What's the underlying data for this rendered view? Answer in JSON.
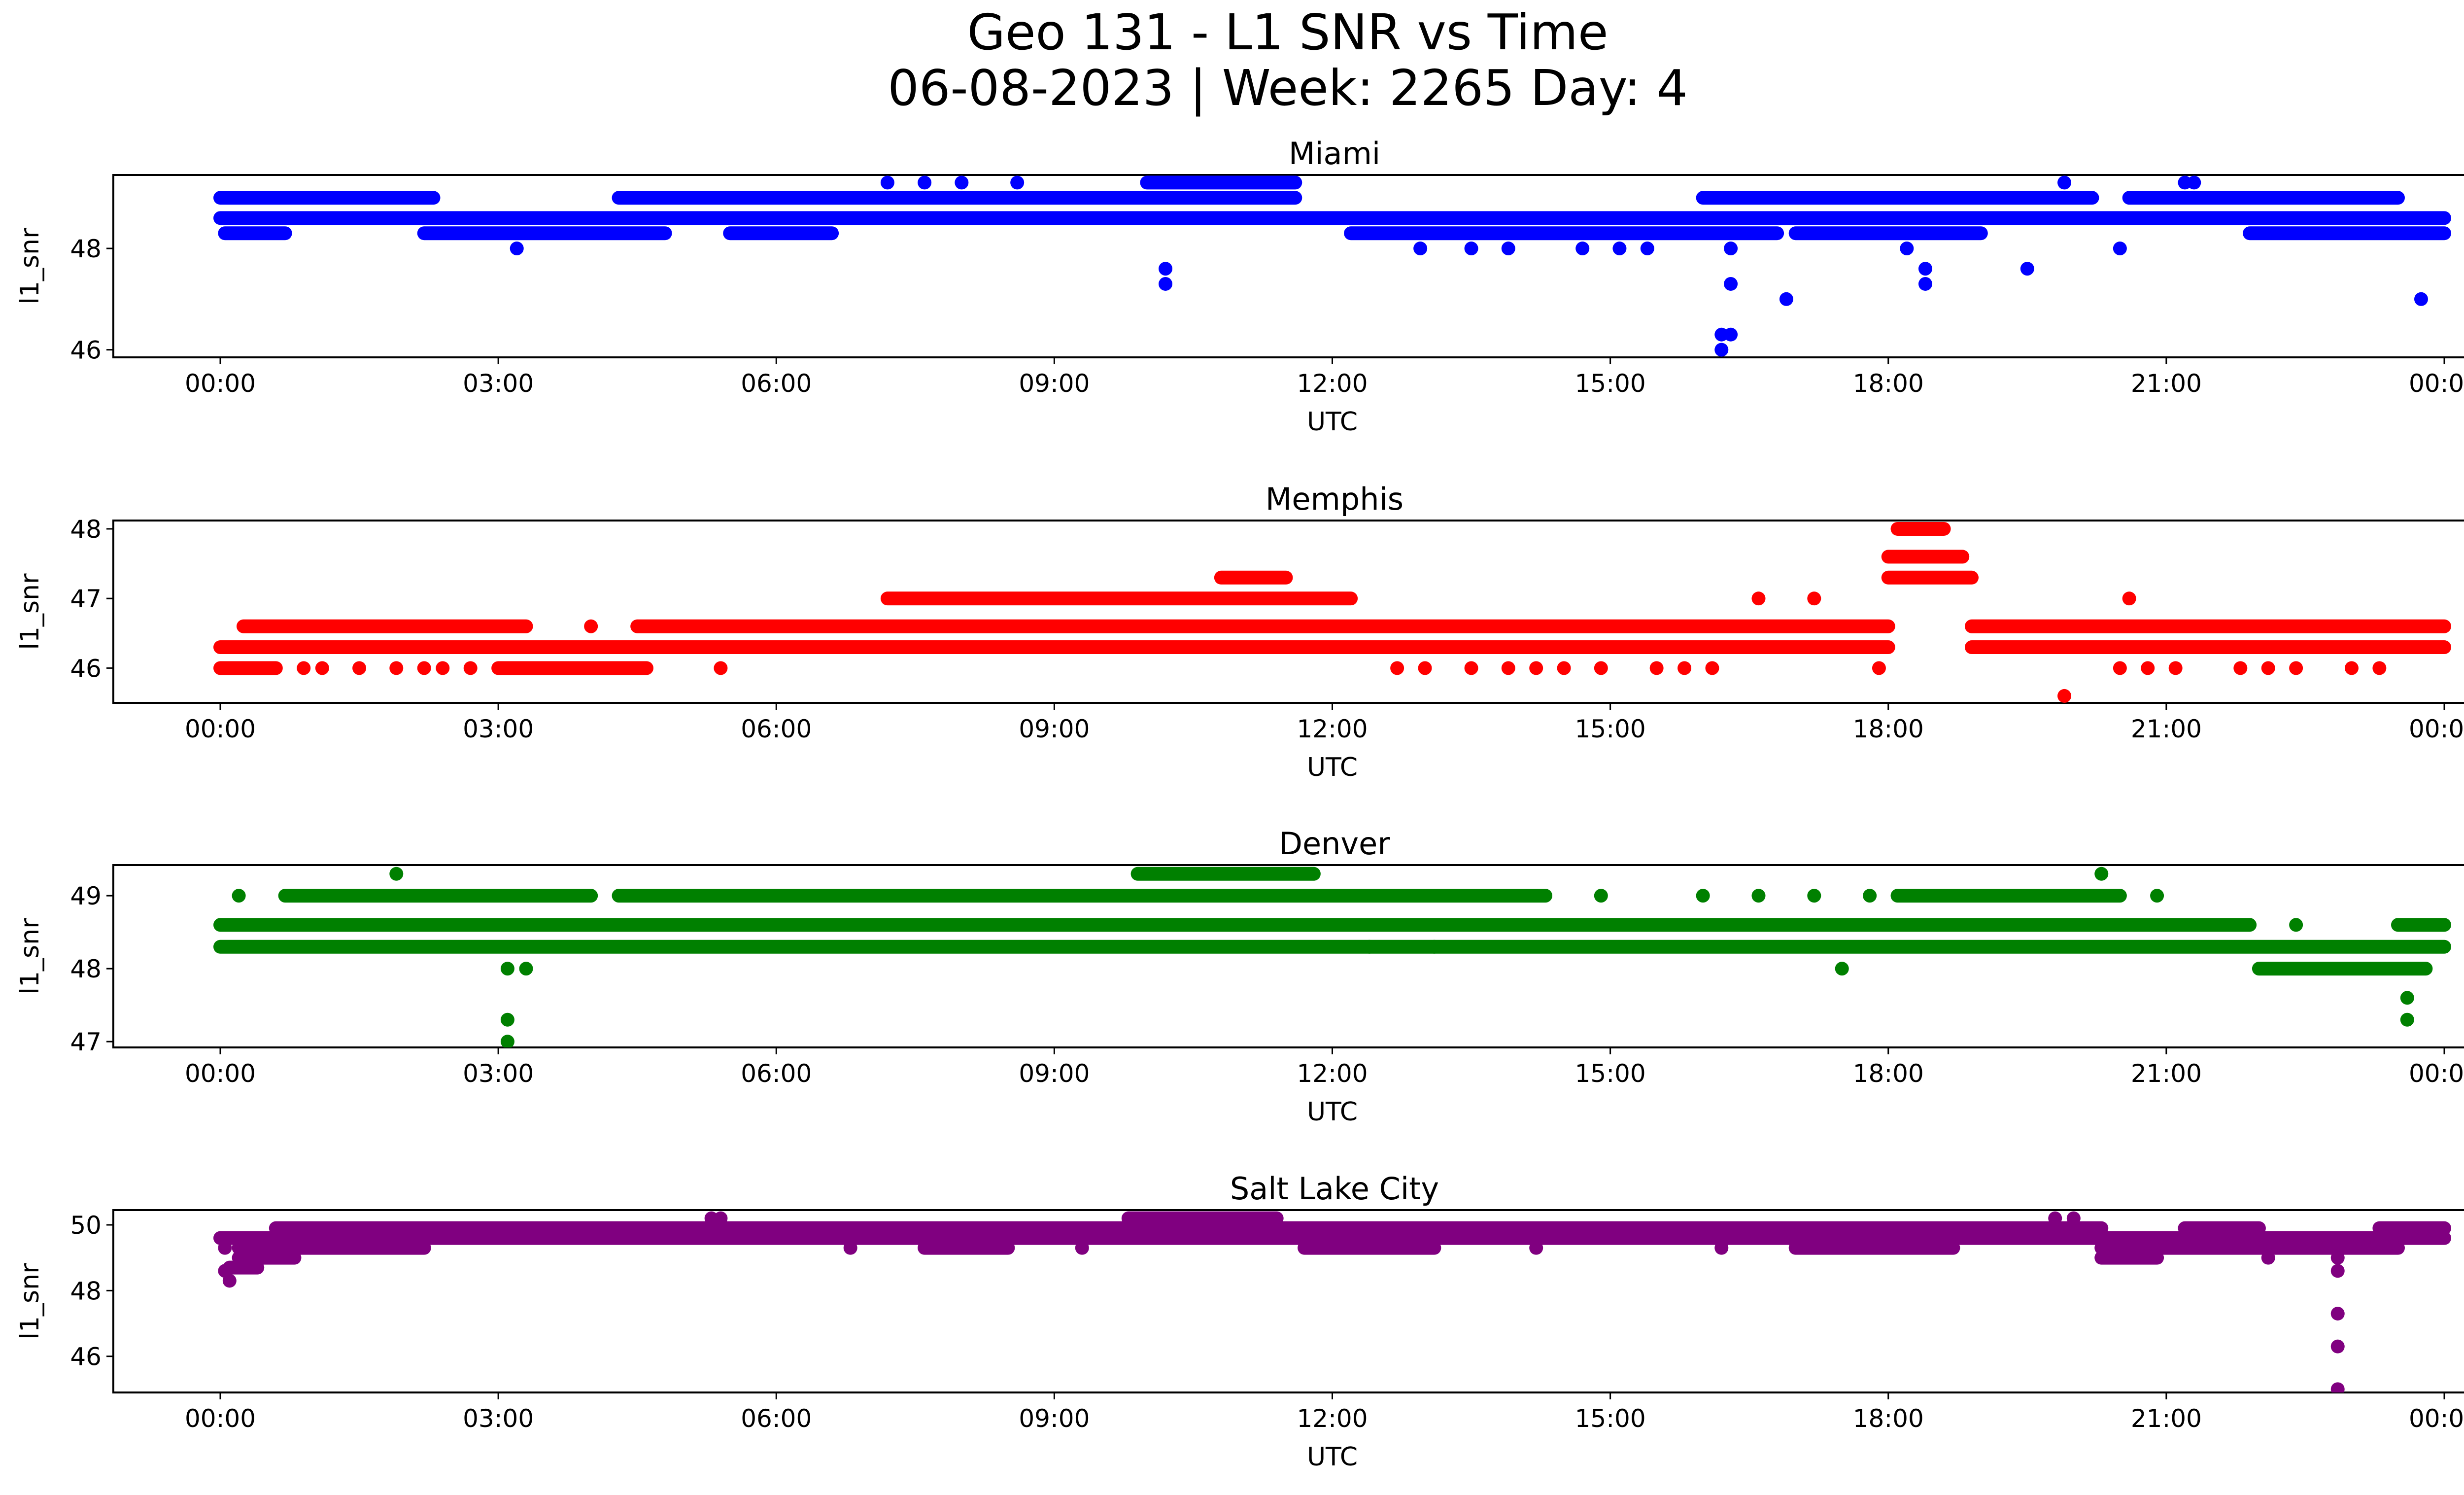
{
  "figure": {
    "title_line1": "Geo 131 - L1 SNR vs Time",
    "title_line2": "06-08-2023 | Week: 2265 Day: 4"
  },
  "chart_data": [
    {
      "type": "scatter",
      "title": "Miami",
      "xlabel": "UTC",
      "ylabel": "l1_snr",
      "color": "#0000ff",
      "xticks": [
        "00:00",
        "03:00",
        "06:00",
        "09:00",
        "12:00",
        "15:00",
        "18:00",
        "21:00",
        "00:00"
      ],
      "yticks": [
        46,
        48
      ],
      "ylim": [
        45.85,
        49.45
      ],
      "base_levels": [
        {
          "x_start": 0.0,
          "x_end": 24.0,
          "y": 48.6
        },
        {
          "x_start": 0.0,
          "x_end": 2.3,
          "y": 49.0
        },
        {
          "x_start": 0.05,
          "x_end": 0.7,
          "y": 48.3
        },
        {
          "x_start": 2.2,
          "x_end": 4.8,
          "y": 48.3
        },
        {
          "x_start": 4.3,
          "x_end": 11.6,
          "y": 49.0
        },
        {
          "x_start": 5.5,
          "x_end": 6.6,
          "y": 48.3
        },
        {
          "x_start": 10.0,
          "x_end": 11.6,
          "y": 49.3
        },
        {
          "x_start": 12.2,
          "x_end": 16.8,
          "y": 48.3
        },
        {
          "x_start": 16.0,
          "x_end": 20.2,
          "y": 49.0
        },
        {
          "x_start": 17.0,
          "x_end": 19.0,
          "y": 48.3
        },
        {
          "x_start": 20.6,
          "x_end": 23.5,
          "y": 49.0
        },
        {
          "x_start": 21.9,
          "x_end": 24.0,
          "y": 48.3
        }
      ],
      "points": [
        {
          "x": 3.2,
          "y": 48.0
        },
        {
          "x": 7.2,
          "y": 49.3
        },
        {
          "x": 7.6,
          "y": 49.3
        },
        {
          "x": 8.0,
          "y": 49.3
        },
        {
          "x": 8.6,
          "y": 49.3
        },
        {
          "x": 10.2,
          "y": 47.6
        },
        {
          "x": 10.2,
          "y": 47.3
        },
        {
          "x": 12.95,
          "y": 48.0
        },
        {
          "x": 13.5,
          "y": 48.0
        },
        {
          "x": 13.9,
          "y": 48.0
        },
        {
          "x": 14.7,
          "y": 48.0
        },
        {
          "x": 15.1,
          "y": 48.0
        },
        {
          "x": 15.4,
          "y": 48.0
        },
        {
          "x": 16.2,
          "y": 46.0
        },
        {
          "x": 16.2,
          "y": 46.3
        },
        {
          "x": 16.3,
          "y": 46.3
        },
        {
          "x": 16.3,
          "y": 47.3
        },
        {
          "x": 16.3,
          "y": 48.0
        },
        {
          "x": 16.9,
          "y": 47.0
        },
        {
          "x": 18.4,
          "y": 47.6
        },
        {
          "x": 18.4,
          "y": 47.3
        },
        {
          "x": 18.2,
          "y": 48.0
        },
        {
          "x": 19.5,
          "y": 47.6
        },
        {
          "x": 19.9,
          "y": 49.3
        },
        {
          "x": 20.5,
          "y": 48.0
        },
        {
          "x": 21.2,
          "y": 49.3
        },
        {
          "x": 21.3,
          "y": 49.3
        },
        {
          "x": 23.75,
          "y": 47.0
        }
      ]
    },
    {
      "type": "scatter",
      "title": "Memphis",
      "xlabel": "UTC",
      "ylabel": "l1_snr",
      "color": "#ff0000",
      "xticks": [
        "00:00",
        "03:00",
        "06:00",
        "09:00",
        "12:00",
        "15:00",
        "18:00",
        "21:00",
        "00:00"
      ],
      "yticks": [
        46,
        47,
        48
      ],
      "ylim": [
        45.5,
        48.12
      ],
      "base_levels": [
        {
          "x_start": 0.0,
          "x_end": 18.0,
          "y": 46.3
        },
        {
          "x_start": 18.9,
          "x_end": 24.0,
          "y": 46.3
        },
        {
          "x_start": 0.25,
          "x_end": 3.3,
          "y": 46.6
        },
        {
          "x_start": 4.5,
          "x_end": 18.0,
          "y": 46.6
        },
        {
          "x_start": 18.9,
          "x_end": 24.0,
          "y": 46.6
        },
        {
          "x_start": 0.0,
          "x_end": 0.6,
          "y": 46.0
        },
        {
          "x_start": 3.0,
          "x_end": 4.6,
          "y": 46.0
        },
        {
          "x_start": 7.2,
          "x_end": 12.2,
          "y": 47.0
        },
        {
          "x_start": 10.8,
          "x_end": 11.5,
          "y": 47.3
        },
        {
          "x_start": 18.0,
          "x_end": 18.9,
          "y": 47.3
        },
        {
          "x_start": 18.0,
          "x_end": 18.8,
          "y": 47.6
        },
        {
          "x_start": 18.1,
          "x_end": 18.6,
          "y": 48.0
        }
      ],
      "points": [
        {
          "x": 0.9,
          "y": 46.0
        },
        {
          "x": 1.1,
          "y": 46.0
        },
        {
          "x": 1.5,
          "y": 46.0
        },
        {
          "x": 1.9,
          "y": 46.0
        },
        {
          "x": 2.2,
          "y": 46.0
        },
        {
          "x": 2.4,
          "y": 46.0
        },
        {
          "x": 2.7,
          "y": 46.0
        },
        {
          "x": 4.0,
          "y": 46.6
        },
        {
          "x": 5.4,
          "y": 46.0
        },
        {
          "x": 12.7,
          "y": 46.0
        },
        {
          "x": 13.0,
          "y": 46.0
        },
        {
          "x": 13.5,
          "y": 46.0
        },
        {
          "x": 13.9,
          "y": 46.0
        },
        {
          "x": 14.2,
          "y": 46.0
        },
        {
          "x": 14.5,
          "y": 46.0
        },
        {
          "x": 14.9,
          "y": 46.0
        },
        {
          "x": 15.5,
          "y": 46.0
        },
        {
          "x": 15.8,
          "y": 46.0
        },
        {
          "x": 16.1,
          "y": 46.0
        },
        {
          "x": 16.6,
          "y": 47.0
        },
        {
          "x": 17.2,
          "y": 47.0
        },
        {
          "x": 17.9,
          "y": 46.0
        },
        {
          "x": 19.9,
          "y": 45.6
        },
        {
          "x": 20.5,
          "y": 46.0
        },
        {
          "x": 20.6,
          "y": 47.0
        },
        {
          "x": 20.8,
          "y": 46.0
        },
        {
          "x": 21.1,
          "y": 46.0
        },
        {
          "x": 21.8,
          "y": 46.0
        },
        {
          "x": 22.1,
          "y": 46.0
        },
        {
          "x": 22.4,
          "y": 46.0
        },
        {
          "x": 23.0,
          "y": 46.0
        },
        {
          "x": 23.3,
          "y": 46.0
        }
      ]
    },
    {
      "type": "scatter",
      "title": "Denver",
      "xlabel": "UTC",
      "ylabel": "l1_snr",
      "color": "#008000",
      "xticks": [
        "00:00",
        "03:00",
        "06:00",
        "09:00",
        "12:00",
        "15:00",
        "18:00",
        "21:00",
        "00:00"
      ],
      "yticks": [
        47,
        48,
        49
      ],
      "ylim": [
        46.92,
        49.42
      ],
      "base_levels": [
        {
          "x_start": 0.0,
          "x_end": 21.9,
          "y": 48.6
        },
        {
          "x_start": 23.5,
          "x_end": 24.0,
          "y": 48.6
        },
        {
          "x_start": 0.0,
          "x_end": 24.0,
          "y": 48.3
        },
        {
          "x_start": 0.7,
          "x_end": 4.0,
          "y": 49.0
        },
        {
          "x_start": 4.3,
          "x_end": 14.3,
          "y": 49.0
        },
        {
          "x_start": 18.1,
          "x_end": 20.5,
          "y": 49.0
        },
        {
          "x_start": 9.9,
          "x_end": 11.8,
          "y": 49.3
        },
        {
          "x_start": 22.0,
          "x_end": 23.8,
          "y": 48.0
        }
      ],
      "points": [
        {
          "x": 0.2,
          "y": 49.0
        },
        {
          "x": 1.9,
          "y": 49.3
        },
        {
          "x": 3.1,
          "y": 48.0
        },
        {
          "x": 3.1,
          "y": 47.3
        },
        {
          "x": 3.1,
          "y": 47.0
        },
        {
          "x": 3.3,
          "y": 48.0
        },
        {
          "x": 12.4,
          "y": 48.3
        },
        {
          "x": 13.1,
          "y": 48.3
        },
        {
          "x": 14.9,
          "y": 49.0
        },
        {
          "x": 16.0,
          "y": 49.0
        },
        {
          "x": 16.6,
          "y": 49.0
        },
        {
          "x": 17.2,
          "y": 49.0
        },
        {
          "x": 17.5,
          "y": 48.0
        },
        {
          "x": 17.8,
          "y": 49.0
        },
        {
          "x": 20.3,
          "y": 49.3
        },
        {
          "x": 20.9,
          "y": 49.0
        },
        {
          "x": 22.4,
          "y": 48.6
        },
        {
          "x": 23.6,
          "y": 47.6
        },
        {
          "x": 23.6,
          "y": 47.3
        }
      ]
    },
    {
      "type": "scatter",
      "title": "Salt Lake City",
      "xlabel": "UTC",
      "ylabel": "l1_snr",
      "color": "#800080",
      "xticks": [
        "00:00",
        "03:00",
        "06:00",
        "09:00",
        "12:00",
        "15:00",
        "18:00",
        "21:00",
        "00:00"
      ],
      "yticks": [
        46,
        48,
        50
      ],
      "ylim": [
        44.9,
        50.45
      ],
      "base_levels": [
        {
          "x_start": 0.0,
          "x_end": 24.0,
          "y": 49.6
        },
        {
          "x_start": 0.6,
          "x_end": 20.3,
          "y": 49.9
        },
        {
          "x_start": 0.2,
          "x_end": 0.8,
          "y": 49.3
        },
        {
          "x_start": 0.2,
          "x_end": 0.8,
          "y": 49.0
        },
        {
          "x_start": 0.1,
          "x_end": 0.4,
          "y": 48.7
        },
        {
          "x_start": 0.8,
          "x_end": 2.2,
          "y": 49.3
        },
        {
          "x_start": 7.6,
          "x_end": 8.5,
          "y": 49.3
        },
        {
          "x_start": 11.7,
          "x_end": 13.1,
          "y": 49.3
        },
        {
          "x_start": 17.0,
          "x_end": 18.7,
          "y": 49.3
        },
        {
          "x_start": 20.3,
          "x_end": 23.5,
          "y": 49.3
        },
        {
          "x_start": 20.3,
          "x_end": 20.9,
          "y": 49.0
        },
        {
          "x_start": 9.8,
          "x_end": 11.4,
          "y": 50.2
        },
        {
          "x_start": 21.2,
          "x_end": 22.0,
          "y": 49.9
        },
        {
          "x_start": 23.3,
          "x_end": 24.0,
          "y": 49.9
        }
      ],
      "points": [
        {
          "x": 0.05,
          "y": 49.3
        },
        {
          "x": 0.1,
          "y": 48.3
        },
        {
          "x": 0.05,
          "y": 48.6
        },
        {
          "x": 5.3,
          "y": 50.2
        },
        {
          "x": 5.4,
          "y": 50.2
        },
        {
          "x": 6.8,
          "y": 49.3
        },
        {
          "x": 9.3,
          "y": 49.3
        },
        {
          "x": 14.2,
          "y": 49.3
        },
        {
          "x": 16.2,
          "y": 49.3
        },
        {
          "x": 19.8,
          "y": 50.2
        },
        {
          "x": 20.0,
          "y": 50.2
        },
        {
          "x": 22.1,
          "y": 49.0
        },
        {
          "x": 22.85,
          "y": 49.0
        },
        {
          "x": 22.85,
          "y": 48.6
        },
        {
          "x": 22.85,
          "y": 47.3
        },
        {
          "x": 22.85,
          "y": 46.3
        },
        {
          "x": 22.85,
          "y": 45.0
        }
      ]
    }
  ]
}
